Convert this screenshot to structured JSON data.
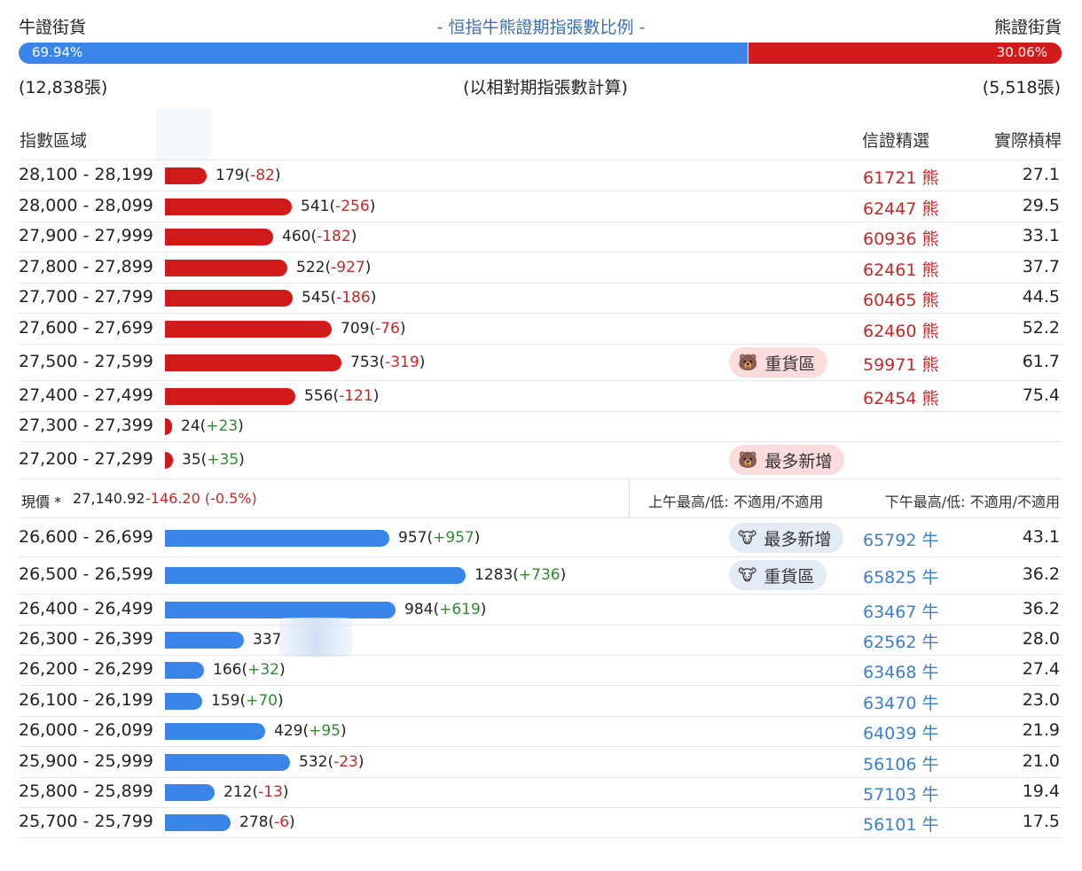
{
  "header": {
    "bull_label": "牛證街貨",
    "bear_label": "熊證街貨",
    "title": "- 恒指牛熊證期指張數比例 -",
    "bull_pct": "69.94%",
    "bear_pct": "30.06%",
    "bull_ratio": 0.6994,
    "bull_count": "(12,838張)",
    "bear_count": "(5,518張)",
    "note": "(以相對期指張數計算)",
    "bull_color": "#3a86e8",
    "bear_color": "#d11a1a"
  },
  "columns": {
    "range": "指數區域",
    "selected": "信證精選",
    "leverage": "實際槓桿"
  },
  "price": {
    "label": "現價 *",
    "value": "27,140.92",
    "change": "-146.20 (-0.5%)",
    "am": "上午最高/低: 不適用/不適用",
    "pm": "下午最高/低: 不適用/不適用"
  },
  "chart_data": {
    "type": "bar",
    "orientation": "horizontal",
    "bear_rows": [
      {
        "range": "28,100 - 28,199",
        "value": 179,
        "change": "-82",
        "code": "61721",
        "kind": "熊",
        "lev": "27.1"
      },
      {
        "range": "28,000 - 28,099",
        "value": 541,
        "change": "-256",
        "code": "62447",
        "kind": "熊",
        "lev": "29.5"
      },
      {
        "range": "27,900 - 27,999",
        "value": 460,
        "change": "-182",
        "code": "60936",
        "kind": "熊",
        "lev": "33.1"
      },
      {
        "range": "27,800 - 27,899",
        "value": 522,
        "change": "-927",
        "code": "62461",
        "kind": "熊",
        "lev": "37.7"
      },
      {
        "range": "27,700 - 27,799",
        "value": 545,
        "change": "-186",
        "code": "60465",
        "kind": "熊",
        "lev": "44.5"
      },
      {
        "range": "27,600 - 27,699",
        "value": 709,
        "change": "-76",
        "code": "62460",
        "kind": "熊",
        "lev": "52.2"
      },
      {
        "range": "27,500 - 27,599",
        "value": 753,
        "change": "-319",
        "code": "59971",
        "kind": "熊",
        "lev": "61.7",
        "tag": "重貨區"
      },
      {
        "range": "27,400 - 27,499",
        "value": 556,
        "change": "-121",
        "code": "62454",
        "kind": "熊",
        "lev": "75.4"
      },
      {
        "range": "27,300 - 27,399",
        "value": 24,
        "change": "+23",
        "code": "",
        "kind": "",
        "lev": ""
      },
      {
        "range": "27,200 - 27,299",
        "value": 35,
        "change": "+35",
        "code": "",
        "kind": "",
        "lev": "",
        "tag": "最多新增"
      }
    ],
    "bull_rows": [
      {
        "range": "26,600 - 26,699",
        "value": 957,
        "change": "+957",
        "code": "65792",
        "kind": "牛",
        "lev": "43.1",
        "tag": "最多新增"
      },
      {
        "range": "26,500 - 26,599",
        "value": 1283,
        "change": "+736",
        "code": "65825",
        "kind": "牛",
        "lev": "36.2",
        "tag": "重貨區"
      },
      {
        "range": "26,400 - 26,499",
        "value": 984,
        "change": "+619",
        "code": "63467",
        "kind": "牛",
        "lev": "36.2"
      },
      {
        "range": "26,300 - 26,399",
        "value": 337,
        "change": "",
        "code": "62562",
        "kind": "牛",
        "lev": "28.0"
      },
      {
        "range": "26,200 - 26,299",
        "value": 166,
        "change": "+32",
        "code": "63468",
        "kind": "牛",
        "lev": "27.4"
      },
      {
        "range": "26,100 - 26,199",
        "value": 159,
        "change": "+70",
        "code": "63470",
        "kind": "牛",
        "lev": "23.0"
      },
      {
        "range": "26,000 - 26,099",
        "value": 429,
        "change": "+95",
        "code": "64039",
        "kind": "牛",
        "lev": "21.9"
      },
      {
        "range": "25,900 - 25,999",
        "value": 532,
        "change": "-23",
        "code": "56106",
        "kind": "牛",
        "lev": "21.0"
      },
      {
        "range": "25,800 - 25,899",
        "value": 212,
        "change": "-13",
        "code": "57103",
        "kind": "牛",
        "lev": "19.4"
      },
      {
        "range": "25,700 - 25,799",
        "value": 278,
        "change": "-6",
        "code": "56101",
        "kind": "牛",
        "lev": "17.5"
      }
    ]
  }
}
